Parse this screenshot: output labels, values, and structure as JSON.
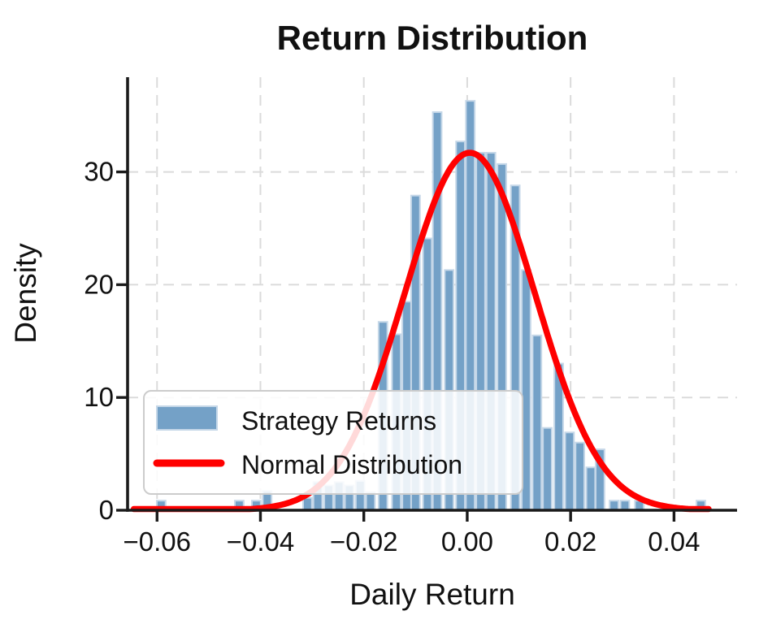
{
  "chart_data": {
    "type": "bar",
    "subtype": "histogram_with_normal_curve",
    "title": "Return Distribution",
    "xlabel": "Daily Return",
    "ylabel": "Density",
    "xlim": [
      -0.0657,
      0.0522
    ],
    "ylim": [
      0,
      38.4
    ],
    "grid": true,
    "x_ticks": [
      -0.06,
      -0.04,
      -0.02,
      0.0,
      0.02,
      0.04
    ],
    "x_tick_labels": [
      "−0.06",
      "−0.04",
      "−0.02",
      "0.00",
      "0.02",
      "0.04"
    ],
    "y_ticks": [
      0,
      10,
      20,
      30
    ],
    "y_tick_labels": [
      "0",
      "10",
      "20",
      "30"
    ],
    "bin_width": 0.00204,
    "series": [
      {
        "name": "Strategy Returns",
        "type": "histogram",
        "color": "#74A1C7",
        "edge_color": "#C5D7E8",
        "bars": [
          {
            "x": -0.0592,
            "density": 0.85
          },
          {
            "x": -0.0441,
            "density": 0.85
          },
          {
            "x": -0.0408,
            "density": 0.85
          },
          {
            "x": -0.0387,
            "density": 1.7
          },
          {
            "x": -0.0309,
            "density": 1.1
          },
          {
            "x": -0.0289,
            "density": 2.5
          },
          {
            "x": -0.0268,
            "density": 2.2
          },
          {
            "x": -0.0248,
            "density": 2.5
          },
          {
            "x": -0.0228,
            "density": 2.2
          },
          {
            "x": -0.0207,
            "density": 2.6
          },
          {
            "x": -0.0187,
            "density": 1.6
          },
          {
            "x": -0.0163,
            "density": 16.7
          },
          {
            "x": -0.0137,
            "density": 15.6
          },
          {
            "x": -0.0117,
            "density": 18.5
          },
          {
            "x": -0.01,
            "density": 27.9
          },
          {
            "x": -0.0077,
            "density": 24.1
          },
          {
            "x": -0.0058,
            "density": 35.3
          },
          {
            "x": -0.0035,
            "density": 21.3
          },
          {
            "x": -0.0013,
            "density": 32.7
          },
          {
            "x": 0.0006,
            "density": 36.3
          },
          {
            "x": 0.0026,
            "density": 31.7
          },
          {
            "x": 0.0046,
            "density": 31.7
          },
          {
            "x": 0.0067,
            "density": 30.7
          },
          {
            "x": 0.0093,
            "density": 28.8
          },
          {
            "x": 0.0114,
            "density": 21.3
          },
          {
            "x": 0.0135,
            "density": 15.5
          },
          {
            "x": 0.0155,
            "density": 7.3
          },
          {
            "x": 0.0177,
            "density": 13.0
          },
          {
            "x": 0.0198,
            "density": 6.9
          },
          {
            "x": 0.0218,
            "density": 6.0
          },
          {
            "x": 0.0239,
            "density": 3.8
          },
          {
            "x": 0.0257,
            "density": 5.4
          },
          {
            "x": 0.0284,
            "density": 0.85
          },
          {
            "x": 0.0305,
            "density": 0.85
          },
          {
            "x": 0.0333,
            "density": 0.85
          },
          {
            "x": 0.0452,
            "density": 0.85
          }
        ]
      },
      {
        "name": "Normal Distribution",
        "type": "line",
        "color": "#FF0000",
        "mean": 0.0005,
        "sigma": 0.0126,
        "peak_density": 31.7,
        "x_range": [
          -0.0645,
          0.047
        ]
      }
    ],
    "legend": {
      "position": "lower left",
      "entries": [
        "Strategy Returns",
        "Normal Distribution"
      ]
    },
    "style": {
      "grid_color": "#DBDBDB",
      "spine_color": "#1a1a1a",
      "background": "#ffffff",
      "legend_face": "#ffffff",
      "legend_edge": "#CCCCCC"
    }
  }
}
